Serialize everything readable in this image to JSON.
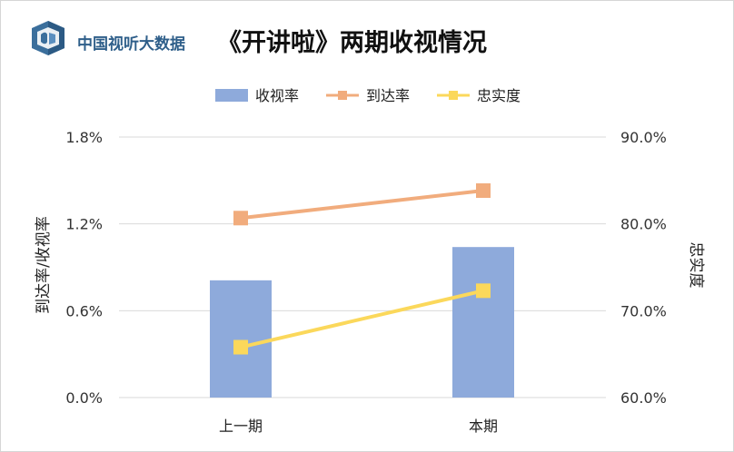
{
  "header": {
    "brand": "中国视听大数据",
    "title": "《开讲啦》两期收视情况"
  },
  "icons": {
    "logo": "cvb-logo-icon"
  },
  "colors": {
    "bar": "#8eaadb",
    "reach": "#f1ac7d",
    "loyalty": "#fbd85b",
    "grid": "#d9d9d9",
    "brand": "#2f5f8a"
  },
  "chart_data": {
    "type": "bar",
    "title": "《开讲啦》两期收视情况",
    "categories": [
      "上一期",
      "本期"
    ],
    "y_left": {
      "label": "到达率/收视率",
      "lim": [
        0,
        0.018
      ],
      "ticks": [
        0,
        0.006,
        0.012,
        0.018
      ],
      "tick_labels": [
        "0.0%",
        "0.6%",
        "1.2%",
        "1.8%"
      ]
    },
    "y_right": {
      "label": "忠实度",
      "lim": [
        0.6,
        0.9
      ],
      "ticks": [
        0.6,
        0.7,
        0.8,
        0.9
      ],
      "tick_labels": [
        "60.0%",
        "70.0%",
        "80.0%",
        "90.0%"
      ]
    },
    "series": [
      {
        "name": "收视率",
        "type": "bar",
        "axis": "left",
        "values": [
          0.0081,
          0.0104
        ]
      },
      {
        "name": "到达率",
        "type": "line",
        "axis": "left",
        "values": [
          0.0124,
          0.0143
        ]
      },
      {
        "name": "忠实度",
        "type": "line",
        "axis": "right",
        "values": [
          0.658,
          0.723
        ]
      }
    ],
    "legend": "top",
    "grid": true
  }
}
